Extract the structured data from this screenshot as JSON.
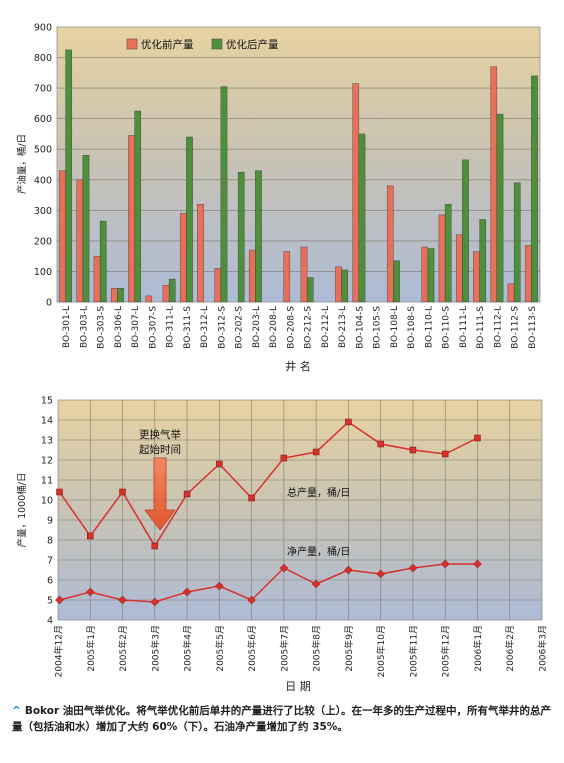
{
  "chart_data": [
    {
      "type": "bar",
      "xlabel": "井 名",
      "ylabel": "产油量，桶/日",
      "ylim": [
        0,
        900
      ],
      "yticks": [
        0,
        100,
        200,
        300,
        400,
        500,
        600,
        700,
        800,
        900
      ],
      "legend_position": "top",
      "categories": [
        "BO-301-L",
        "BO-303-L",
        "BO-303-S",
        "BO-306-L",
        "BO-307-L",
        "BO-307-S",
        "BO-311-L",
        "BO-311-S",
        "BO-312-L",
        "BO-312-S",
        "BO-202-S",
        "BO-203-L",
        "BO-208-L",
        "BO-208-S",
        "BO-212-S",
        "BO-212-L",
        "BO-213-L",
        "BO-104-S",
        "BO-105-S",
        "BO-108-L",
        "BO-108-S",
        "BO-110-L",
        "BO-110-S",
        "BO-111-L",
        "BO-111-S",
        "BO-112-L",
        "BO-112-S",
        "BO-113-S"
      ],
      "series": [
        {
          "name": "优化前产量",
          "color": "#e8705a",
          "values": [
            430,
            400,
            150,
            45,
            545,
            20,
            55,
            290,
            320,
            110,
            0,
            170,
            0,
            165,
            180,
            0,
            115,
            715,
            0,
            380,
            0,
            180,
            285,
            220,
            165,
            770,
            60,
            185
          ]
        },
        {
          "name": "优化后产量",
          "color": "#4d8f3a",
          "values": [
            825,
            480,
            265,
            45,
            625,
            0,
            75,
            540,
            0,
            705,
            425,
            430,
            0,
            0,
            80,
            0,
            105,
            550,
            0,
            135,
            0,
            175,
            320,
            465,
            270,
            615,
            390,
            740
          ]
        }
      ]
    },
    {
      "type": "line",
      "xlabel": "日 期",
      "ylabel": "产量，1000桶/日",
      "ylim": [
        4,
        15
      ],
      "yticks": [
        4,
        5,
        6,
        7,
        8,
        9,
        10,
        11,
        12,
        13,
        14,
        15
      ],
      "x_tick_labels": [
        "2004年12月",
        "2005年1月",
        "2005年2月",
        "2005年3月",
        "2005年4月",
        "2005年5月",
        "2005年6月",
        "2005年7月",
        "2005年8月",
        "2005年9月",
        "2005年10月",
        "2005年11月",
        "2005年12月",
        "2006年1月",
        "2006年2月",
        "2006年3月"
      ],
      "annotation": {
        "text_line1": "更换气举",
        "text_line2": "起始时间",
        "at_x": 3
      },
      "series": [
        {
          "name": "总产量，桶/日",
          "color": "#d9302c",
          "marker": "square",
          "x": [
            0,
            1,
            2,
            3,
            4,
            5,
            6,
            7,
            8,
            9,
            10,
            11,
            12,
            13,
            14
          ],
          "values": [
            10.4,
            8.2,
            10.4,
            7.7,
            10.3,
            11.8,
            10.1,
            12.1,
            12.4,
            13.9,
            12.8,
            12.5,
            12.3,
            13.1,
            0
          ]
        },
        {
          "name": "净产量，桶/日",
          "color": "#d9302c",
          "marker": "diamond",
          "x": [
            0,
            1,
            2,
            3,
            4,
            5,
            6,
            7,
            8,
            9,
            10,
            11,
            12,
            13,
            14
          ],
          "values": [
            5.0,
            5.4,
            5.0,
            4.9,
            5.4,
            5.7,
            5.0,
            6.6,
            5.8,
            6.5,
            6.3,
            6.6,
            6.8,
            6.8,
            0
          ]
        }
      ]
    }
  ],
  "caption": {
    "text": "Bokor 油田气举优化。将气举优化前后单井的产量进行了比较（上）。在一年多的生产过程中，所有气举井的总产量（包括油和水）增加了大约 60%（下）。石油净产量增加了约 35%。"
  }
}
